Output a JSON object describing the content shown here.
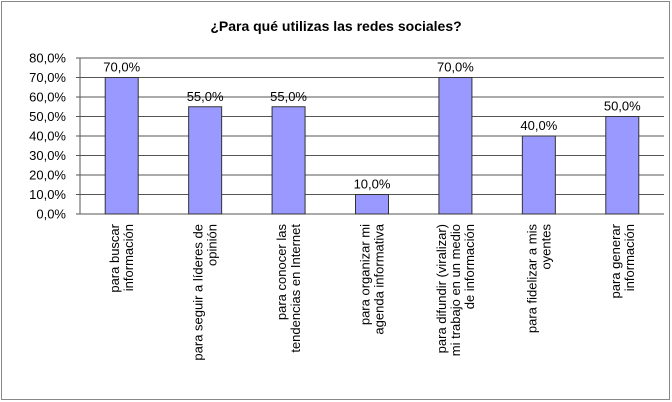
{
  "chart_data": {
    "type": "bar",
    "title": "¿Para qué utilizas las redes sociales?",
    "categories": [
      [
        "para buscar",
        "información"
      ],
      [
        "para seguir a líderes de",
        "opinión"
      ],
      [
        "para conocer las",
        "tendencias en Internet"
      ],
      [
        "para organizar mi",
        "agenda informativa"
      ],
      [
        "para difundir (viralizar)",
        "mi trabajo en un medio",
        "de información"
      ],
      [
        "para fidelizar a mis",
        "oyentes"
      ],
      [
        "para generar",
        "información"
      ]
    ],
    "values": [
      70,
      55,
      55,
      10,
      70,
      40,
      50
    ],
    "value_labels": [
      "70,0%",
      "55,0%",
      "55,0%",
      "10,0%",
      "70,0%",
      "40,0%",
      "50,0%"
    ],
    "color": "#9999ff",
    "ylim": [
      0,
      80
    ],
    "yticks": [
      {
        "value": 0,
        "label": "0,0%"
      },
      {
        "value": 10,
        "label": "10,0%"
      },
      {
        "value": 20,
        "label": "20,0%"
      },
      {
        "value": 30,
        "label": "30,0%"
      },
      {
        "value": 40,
        "label": "40,0%"
      },
      {
        "value": 50,
        "label": "50,0%"
      },
      {
        "value": 60,
        "label": "60,0%"
      },
      {
        "value": 70,
        "label": "70,0%"
      },
      {
        "value": 80,
        "label": "80,0%"
      }
    ],
    "grid": true
  }
}
